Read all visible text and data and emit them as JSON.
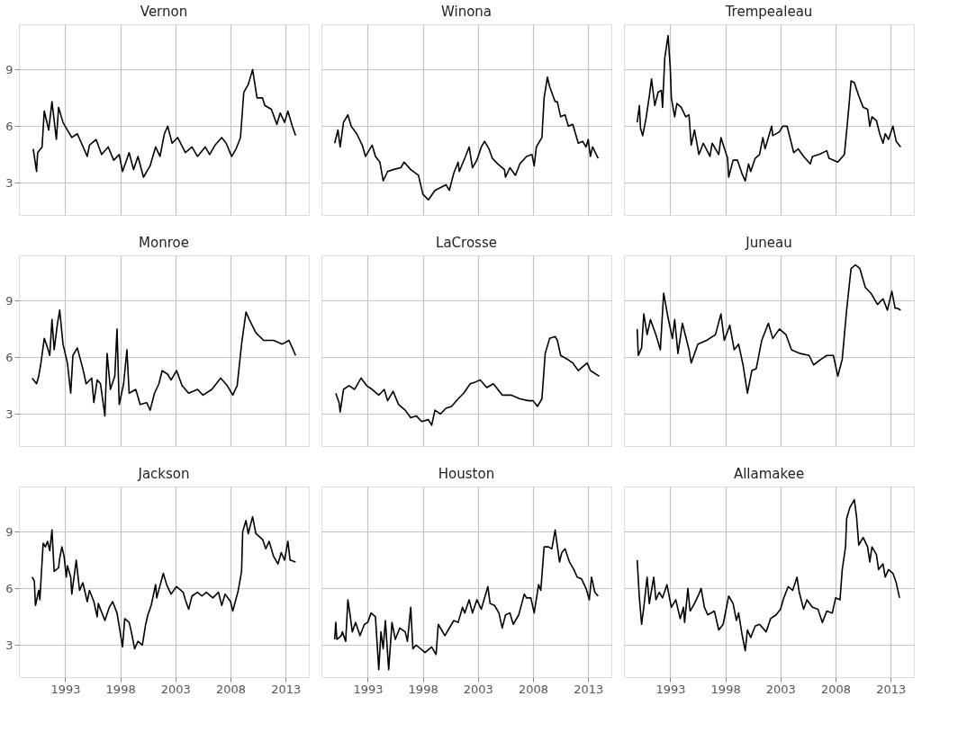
{
  "chart_data": [
    {
      "type": "line",
      "title": "Vernon",
      "color": "#000000",
      "grid": true,
      "tick_labels": "y",
      "xlim": [
        1988.8,
        2015.1
      ],
      "ylim": [
        1.3,
        11.4
      ],
      "xticks": [
        1993,
        1998,
        2003,
        2008,
        2013
      ],
      "yticks": [
        3,
        6,
        9
      ],
      "x": [
        1990.1,
        1990.4,
        1990.5,
        1990.9,
        1991.1,
        1991.5,
        1991.8,
        1992.2,
        1992.4,
        1992.8,
        1993.2,
        1993.6,
        1994.1,
        1995.0,
        1995.2,
        1995.8,
        1996.3,
        1996.9,
        1997.4,
        1997.9,
        1998.2,
        1998.8,
        1999.2,
        1999.6,
        2000.1,
        2000.7,
        2001.2,
        2001.6,
        2002.0,
        2002.3,
        2002.7,
        2003.2,
        2003.9,
        2004.5,
        2005.0,
        2005.7,
        2006.1,
        2006.6,
        2007.2,
        2007.6,
        2008.1,
        2008.5,
        2008.9,
        2009.2,
        2009.6,
        2010.0,
        2010.4,
        2010.9,
        2011.1,
        2011.7,
        2012.2,
        2012.5,
        2012.9,
        2013.2,
        2013.6,
        2013.9
      ],
      "values": [
        4.8,
        3.6,
        4.6,
        4.9,
        6.8,
        5.8,
        7.3,
        5.3,
        7.0,
        6.2,
        5.8,
        5.4,
        5.6,
        4.4,
        5.0,
        5.3,
        4.5,
        4.9,
        4.2,
        4.5,
        3.6,
        4.6,
        3.7,
        4.4,
        3.3,
        3.9,
        4.9,
        4.4,
        5.6,
        6.0,
        5.1,
        5.4,
        4.6,
        4.9,
        4.4,
        4.9,
        4.5,
        5.0,
        5.4,
        5.1,
        4.4,
        4.8,
        5.4,
        7.8,
        8.2,
        9.0,
        7.5,
        7.5,
        7.1,
        6.9,
        6.1,
        6.7,
        6.2,
        6.8,
        6.0,
        5.5
      ]
    },
    {
      "type": "line",
      "title": "Winona",
      "color": "#000000",
      "grid": true,
      "tick_labels": false,
      "xlim": [
        1988.8,
        2015.1
      ],
      "ylim": [
        1.3,
        11.4
      ],
      "xticks": [
        1993,
        1998,
        2003,
        2008,
        2013
      ],
      "yticks": [
        3,
        6,
        9
      ],
      "x": [
        1990.0,
        1990.3,
        1990.5,
        1990.8,
        1991.2,
        1991.5,
        1992.0,
        1992.5,
        1992.8,
        1993.4,
        1993.7,
        1994.1,
        1994.4,
        1994.8,
        1995.3,
        1996.0,
        1996.3,
        1996.9,
        1997.6,
        1998.0,
        1998.5,
        1999.1,
        2000.1,
        2000.4,
        2000.8,
        2001.2,
        2001.3,
        2001.8,
        2002.2,
        2002.5,
        2002.9,
        2003.3,
        2003.6,
        2004.0,
        2004.3,
        2004.8,
        2005.4,
        2005.5,
        2005.9,
        2006.4,
        2006.8,
        2007.4,
        2007.9,
        2008.1,
        2008.3,
        2008.8,
        2009.0,
        2009.3,
        2009.5,
        2010.0,
        2010.2,
        2010.5,
        2010.9,
        2011.2,
        2011.6,
        2012.1,
        2012.5,
        2012.8,
        2013.0,
        2013.2,
        2013.4,
        2013.9
      ],
      "values": [
        5.1,
        5.8,
        4.9,
        6.2,
        6.6,
        6.0,
        5.6,
        5.0,
        4.4,
        5.0,
        4.4,
        4.1,
        3.1,
        3.6,
        3.7,
        3.8,
        4.1,
        3.7,
        3.4,
        2.4,
        2.1,
        2.6,
        2.9,
        2.6,
        3.5,
        4.1,
        3.6,
        4.3,
        4.9,
        3.8,
        4.2,
        4.9,
        5.2,
        4.8,
        4.3,
        4.0,
        3.7,
        3.3,
        3.8,
        3.4,
        4.0,
        4.4,
        4.5,
        3.9,
        4.9,
        5.4,
        7.5,
        8.6,
        8.1,
        7.3,
        7.3,
        6.5,
        6.6,
        6.0,
        6.1,
        5.1,
        5.2,
        4.9,
        5.3,
        4.4,
        4.9,
        4.3
      ]
    },
    {
      "type": "line",
      "title": "Trempealeau",
      "color": "#000000",
      "grid": true,
      "tick_labels": false,
      "xlim": [
        1988.8,
        2015.1
      ],
      "ylim": [
        1.3,
        11.4
      ],
      "xticks": [
        1993,
        1998,
        2003,
        2008,
        2013
      ],
      "yticks": [
        3,
        6,
        9
      ],
      "x": [
        1990.0,
        1990.2,
        1990.3,
        1990.5,
        1990.8,
        1991.1,
        1991.3,
        1991.6,
        1991.9,
        1992.2,
        1992.3,
        1992.5,
        1992.8,
        1993.0,
        1993.1,
        1993.4,
        1993.6,
        1994.0,
        1994.4,
        1994.7,
        1994.9,
        1995.2,
        1995.6,
        1996.0,
        1996.6,
        1996.8,
        1997.4,
        1997.6,
        1998.2,
        1998.3,
        1998.7,
        1999.1,
        1999.5,
        1999.8,
        2000.1,
        2000.3,
        2000.7,
        2001.1,
        2001.4,
        2001.6,
        2002.2,
        2002.3,
        2002.9,
        2003.2,
        2003.6,
        2003.9,
        2004.2,
        2004.6,
        2005.1,
        2005.7,
        2005.9,
        2006.5,
        2007.2,
        2007.4,
        2008.2,
        2008.8,
        2009.2,
        2009.4,
        2009.7,
        2010.1,
        2010.5,
        2010.9,
        2011.1,
        2011.3,
        2011.7,
        2012.0,
        2012.3,
        2012.5,
        2012.8,
        2013.2,
        2013.5,
        2013.9
      ],
      "values": [
        6.2,
        7.1,
        5.9,
        5.5,
        6.4,
        7.6,
        8.5,
        7.1,
        7.8,
        7.9,
        7.0,
        9.6,
        10.8,
        9.1,
        7.5,
        6.5,
        7.2,
        7.0,
        6.5,
        6.6,
        5.0,
        5.8,
        4.5,
        5.1,
        4.4,
        5.1,
        4.5,
        5.4,
        4.3,
        3.3,
        4.2,
        4.2,
        3.5,
        3.1,
        4.0,
        3.6,
        4.3,
        4.5,
        5.4,
        4.8,
        6.0,
        5.5,
        5.7,
        6.0,
        6.0,
        5.3,
        4.6,
        4.8,
        4.4,
        4.0,
        4.4,
        4.5,
        4.7,
        4.3,
        4.1,
        4.5,
        7.0,
        8.4,
        8.3,
        7.6,
        7.0,
        6.9,
        6.0,
        6.5,
        6.3,
        5.6,
        5.1,
        5.6,
        5.3,
        6.0,
        5.2,
        4.9
      ]
    },
    {
      "type": "line",
      "title": "Monroe",
      "color": "#000000",
      "grid": true,
      "tick_labels": "y",
      "xlim": [
        1988.8,
        2015.1
      ],
      "ylim": [
        1.3,
        11.4
      ],
      "xticks": [
        1993,
        1998,
        2003,
        2008,
        2013
      ],
      "yticks": [
        3,
        6,
        9
      ],
      "x": [
        1990.0,
        1990.4,
        1990.6,
        1990.8,
        1991.1,
        1991.4,
        1991.6,
        1991.8,
        1992.0,
        1992.3,
        1992.5,
        1992.8,
        1993.2,
        1993.5,
        1993.7,
        1994.1,
        1994.6,
        1994.9,
        1995.4,
        1995.6,
        1995.9,
        1996.2,
        1996.6,
        1996.8,
        1997.1,
        1997.5,
        1997.7,
        1997.9,
        1998.3,
        1998.6,
        1998.8,
        1999.4,
        1999.8,
        2000.4,
        2000.7,
        2001.1,
        2001.5,
        2001.8,
        2002.3,
        2002.6,
        2003.1,
        2003.6,
        2004.2,
        2005.0,
        2005.5,
        2006.3,
        2007.1,
        2007.7,
        2008.2,
        2008.6,
        2009.0,
        2009.4,
        2009.7,
        2010.3,
        2011.0,
        2011.9,
        2012.7,
        2013.3,
        2013.6,
        2013.9
      ],
      "values": [
        4.9,
        4.6,
        5.0,
        5.7,
        7.0,
        6.5,
        6.1,
        8.0,
        6.4,
        7.8,
        8.5,
        6.7,
        5.7,
        4.1,
        6.1,
        6.5,
        5.4,
        4.6,
        4.9,
        3.6,
        4.8,
        4.6,
        2.9,
        6.2,
        4.3,
        5.0,
        7.5,
        3.5,
        4.6,
        6.4,
        4.1,
        4.3,
        3.5,
        3.6,
        3.2,
        4.1,
        4.6,
        5.3,
        5.1,
        4.8,
        5.3,
        4.5,
        4.1,
        4.3,
        4.0,
        4.3,
        4.9,
        4.5,
        4.0,
        4.5,
        6.7,
        8.4,
        8.0,
        7.3,
        6.9,
        6.9,
        6.7,
        6.9,
        6.5,
        6.1
      ]
    },
    {
      "type": "line",
      "title": "LaCrosse",
      "color": "#000000",
      "grid": true,
      "tick_labels": false,
      "xlim": [
        1988.8,
        2015.1
      ],
      "ylim": [
        1.3,
        11.4
      ],
      "xticks": [
        1993,
        1998,
        2003,
        2008,
        2013
      ],
      "yticks": [
        3,
        6,
        9
      ],
      "x": [
        1990.1,
        1990.4,
        1990.5,
        1990.8,
        1991.3,
        1991.8,
        1992.4,
        1992.9,
        1993.4,
        1994.0,
        1994.5,
        1994.8,
        1995.3,
        1995.8,
        1996.4,
        1996.9,
        1997.4,
        1997.9,
        1998.5,
        1998.8,
        1999.1,
        1999.6,
        2000.1,
        2000.6,
        2001.2,
        2001.7,
        2002.3,
        2002.8,
        2003.2,
        2003.8,
        2004.4,
        2005.2,
        2006.0,
        2006.8,
        2007.6,
        2008.0,
        2008.4,
        2008.8,
        2009.1,
        2009.5,
        2010.0,
        2010.2,
        2010.5,
        2011.1,
        2011.6,
        2012.1,
        2012.9,
        2013.2,
        2014.0
      ],
      "values": [
        4.1,
        3.6,
        3.1,
        4.3,
        4.5,
        4.3,
        4.9,
        4.5,
        4.3,
        4.0,
        4.3,
        3.7,
        4.2,
        3.5,
        3.2,
        2.8,
        2.9,
        2.6,
        2.7,
        2.4,
        3.2,
        3.0,
        3.3,
        3.4,
        3.8,
        4.1,
        4.6,
        4.7,
        4.8,
        4.4,
        4.6,
        4.0,
        4.0,
        3.8,
        3.7,
        3.7,
        3.4,
        3.8,
        6.2,
        7.0,
        7.1,
        6.9,
        6.1,
        5.9,
        5.7,
        5.3,
        5.7,
        5.3,
        5.0
      ]
    },
    {
      "type": "line",
      "title": "Juneau",
      "color": "#000000",
      "grid": true,
      "tick_labels": false,
      "xlim": [
        1988.8,
        2015.1
      ],
      "ylim": [
        1.3,
        11.4
      ],
      "xticks": [
        1993,
        1998,
        2003,
        2008,
        2013
      ],
      "yticks": [
        3,
        6,
        9
      ],
      "x": [
        1990.0,
        1990.1,
        1990.4,
        1990.6,
        1990.9,
        1991.2,
        1991.7,
        1992.1,
        1992.4,
        1992.8,
        1993.2,
        1993.4,
        1993.7,
        1994.1,
        1994.7,
        1994.9,
        1995.5,
        1996.3,
        1997.1,
        1997.6,
        1997.9,
        1998.4,
        1998.8,
        1999.2,
        1999.6,
        2000.0,
        2000.4,
        2000.8,
        2001.3,
        2001.9,
        2002.3,
        2002.9,
        2003.5,
        2004.0,
        2004.8,
        2005.6,
        2006.0,
        2006.7,
        2007.2,
        2007.8,
        2008.2,
        2008.6,
        2009.0,
        2009.4,
        2009.8,
        2010.2,
        2010.7,
        2011.2,
        2011.8,
        2012.3,
        2012.7,
        2013.1,
        2013.4,
        2013.6,
        2013.9
      ],
      "values": [
        7.5,
        6.1,
        6.5,
        8.3,
        7.2,
        8.0,
        7.2,
        6.4,
        9.4,
        8.1,
        7.0,
        8.0,
        6.2,
        7.8,
        6.4,
        5.7,
        6.7,
        6.9,
        7.2,
        8.3,
        6.9,
        7.7,
        6.4,
        6.7,
        5.6,
        4.1,
        5.3,
        5.4,
        6.9,
        7.8,
        7.0,
        7.5,
        7.2,
        6.4,
        6.2,
        6.1,
        5.6,
        5.9,
        6.1,
        6.1,
        5.0,
        5.9,
        8.5,
        10.7,
        10.9,
        10.7,
        9.7,
        9.4,
        8.8,
        9.1,
        8.5,
        9.5,
        8.6,
        8.6,
        8.5
      ]
    },
    {
      "type": "line",
      "title": "Jackson",
      "color": "#000000",
      "grid": true,
      "xlim": [
        1988.8,
        2015.1
      ],
      "ylim": [
        1.3,
        11.4
      ],
      "xticks": [
        1993,
        1998,
        2003,
        2008,
        2013
      ],
      "yticks": [
        3,
        6,
        9
      ],
      "x": [
        1990.0,
        1990.2,
        1990.3,
        1990.6,
        1990.7,
        1991.0,
        1991.2,
        1991.4,
        1991.6,
        1991.8,
        1992.0,
        1992.4,
        1992.5,
        1992.7,
        1992.9,
        1993.1,
        1993.2,
        1993.5,
        1993.6,
        1994.0,
        1994.3,
        1994.6,
        1995.0,
        1995.2,
        1995.6,
        1995.9,
        1996.0,
        1996.6,
        1997.0,
        1997.3,
        1997.7,
        1997.9,
        1998.2,
        1998.4,
        1998.8,
        1999.0,
        1999.3,
        1999.6,
        2000.0,
        2000.3,
        2000.5,
        2000.8,
        2001.2,
        2001.3,
        2001.9,
        2002.2,
        2002.6,
        2003.1,
        2003.7,
        2003.9,
        2004.2,
        2004.5,
        2005.0,
        2005.4,
        2005.8,
        2006.4,
        2006.9,
        2007.2,
        2007.5,
        2008.0,
        2008.2,
        2008.7,
        2009.0,
        2009.1,
        2009.4,
        2009.6,
        2010.0,
        2010.3,
        2010.9,
        2011.2,
        2011.5,
        2011.9,
        2012.3,
        2012.6,
        2012.9,
        2013.2,
        2013.4,
        2013.9
      ],
      "values": [
        6.6,
        6.4,
        5.1,
        5.9,
        5.4,
        8.4,
        8.2,
        8.5,
        8.0,
        9.1,
        6.9,
        7.1,
        7.6,
        8.2,
        7.7,
        6.6,
        7.2,
        6.6,
        5.7,
        7.5,
        5.9,
        6.3,
        5.3,
        5.9,
        5.3,
        4.5,
        5.2,
        4.3,
        5.0,
        5.3,
        4.7,
        4.0,
        2.9,
        4.4,
        4.2,
        3.7,
        2.8,
        3.2,
        3.0,
        4.1,
        4.6,
        5.1,
        6.2,
        5.5,
        6.8,
        6.2,
        5.7,
        6.1,
        5.8,
        5.4,
        4.9,
        5.6,
        5.8,
        5.6,
        5.8,
        5.5,
        5.8,
        5.1,
        5.7,
        5.3,
        4.8,
        5.9,
        6.9,
        9.0,
        9.6,
        8.9,
        9.8,
        8.9,
        8.6,
        8.1,
        8.5,
        7.7,
        7.3,
        7.9,
        7.5,
        8.5,
        7.5,
        7.4
      ]
    },
    {
      "type": "line",
      "title": "Houston",
      "color": "#000000",
      "grid": true,
      "tick_labels": "x",
      "xlim": [
        1988.8,
        2015.1
      ],
      "ylim": [
        1.3,
        11.4
      ],
      "xticks": [
        1993,
        1998,
        2003,
        2008,
        2013
      ],
      "yticks": [
        3,
        6,
        9
      ],
      "x": [
        1990.0,
        1990.1,
        1990.2,
        1990.6,
        1990.7,
        1991.0,
        1991.2,
        1991.4,
        1991.6,
        1991.9,
        1992.3,
        1992.7,
        1993.0,
        1993.3,
        1993.7,
        1994.0,
        1994.2,
        1994.4,
        1994.6,
        1994.9,
        1995.2,
        1995.5,
        1995.9,
        1996.4,
        1996.6,
        1996.9,
        1997.1,
        1997.4,
        1997.8,
        1998.2,
        1998.8,
        1999.2,
        1999.4,
        2000.0,
        2000.6,
        2000.8,
        2001.2,
        2001.6,
        2001.8,
        2002.2,
        2002.5,
        2002.9,
        2003.3,
        2003.6,
        2003.9,
        2004.1,
        2004.5,
        2004.9,
        2005.2,
        2005.5,
        2005.9,
        2006.2,
        2006.7,
        2007.2,
        2007.4,
        2007.8,
        2008.1,
        2008.5,
        2008.7,
        2009.0,
        2009.4,
        2009.7,
        2010.0,
        2010.4,
        2010.6,
        2010.9,
        2011.3,
        2011.7,
        2012.0,
        2012.4,
        2012.8,
        2013.1,
        2013.3,
        2013.6,
        2013.9
      ],
      "values": [
        3.3,
        4.2,
        3.3,
        3.5,
        3.7,
        3.2,
        5.4,
        4.6,
        3.7,
        4.2,
        3.5,
        4.1,
        4.2,
        4.7,
        4.5,
        1.7,
        3.7,
        2.8,
        4.3,
        1.7,
        4.2,
        3.3,
        3.9,
        3.7,
        3.2,
        5.0,
        2.8,
        3.0,
        2.8,
        2.6,
        2.9,
        2.5,
        4.1,
        3.5,
        4.1,
        4.3,
        4.2,
        5.0,
        4.7,
        5.4,
        4.7,
        5.4,
        4.9,
        5.5,
        6.1,
        5.2,
        5.1,
        4.7,
        3.9,
        4.6,
        4.7,
        4.1,
        4.6,
        5.7,
        5.5,
        5.5,
        4.7,
        6.2,
        5.9,
        8.2,
        8.2,
        8.1,
        9.1,
        7.4,
        7.9,
        8.1,
        7.4,
        7.0,
        6.6,
        6.5,
        6.0,
        5.4,
        6.6,
        5.8,
        5.6
      ]
    },
    {
      "type": "line",
      "title": "Allamakee",
      "color": "#000000",
      "grid": true,
      "tick_labels": "x",
      "xlim": [
        1988.8,
        2015.1
      ],
      "ylim": [
        1.3,
        11.4
      ],
      "xticks": [
        1993,
        1998,
        2003,
        2008,
        2013
      ],
      "yticks": [
        3,
        6,
        9
      ],
      "x": [
        1990.0,
        1990.2,
        1990.4,
        1990.6,
        1990.9,
        1991.1,
        1991.5,
        1991.7,
        1992.0,
        1992.3,
        1992.7,
        1993.1,
        1993.5,
        1993.9,
        1994.2,
        1994.3,
        1994.6,
        1994.8,
        1995.2,
        1995.6,
        1995.8,
        1996.1,
        1996.4,
        1997.0,
        1997.4,
        1997.8,
        1998.3,
        1998.7,
        1999.0,
        1999.2,
        1999.5,
        1999.8,
        2000.0,
        2000.3,
        2000.7,
        2001.1,
        2001.7,
        2002.1,
        2002.6,
        2003.0,
        2003.3,
        2003.7,
        2004.1,
        2004.5,
        2004.7,
        2005.1,
        2005.4,
        2005.9,
        2006.4,
        2006.8,
        2007.2,
        2007.7,
        2008.0,
        2008.4,
        2008.6,
        2008.9,
        2009.0,
        2009.3,
        2009.7,
        2009.9,
        2010.1,
        2010.5,
        2010.9,
        2011.1,
        2011.3,
        2011.7,
        2011.9,
        2012.3,
        2012.5,
        2012.8,
        2013.2,
        2013.5,
        2013.8
      ],
      "values": [
        7.5,
        5.5,
        4.1,
        5.0,
        6.6,
        5.2,
        6.6,
        5.4,
        5.8,
        5.5,
        6.2,
        5.0,
        5.4,
        4.4,
        5.0,
        4.2,
        6.0,
        4.8,
        5.2,
        5.7,
        6.0,
        5.0,
        4.6,
        4.8,
        3.8,
        4.1,
        5.6,
        5.2,
        4.3,
        4.7,
        3.6,
        2.7,
        3.8,
        3.4,
        4.0,
        4.1,
        3.7,
        4.4,
        4.6,
        4.9,
        5.5,
        6.1,
        5.9,
        6.6,
        5.8,
        4.9,
        5.4,
        5.0,
        4.9,
        4.2,
        4.8,
        4.7,
        5.5,
        5.4,
        7.0,
        8.2,
        9.7,
        10.3,
        10.7,
        9.8,
        8.3,
        8.7,
        8.2,
        7.4,
        8.2,
        7.8,
        7.0,
        7.3,
        6.6,
        7.0,
        6.8,
        6.3,
        5.5
      ]
    }
  ]
}
